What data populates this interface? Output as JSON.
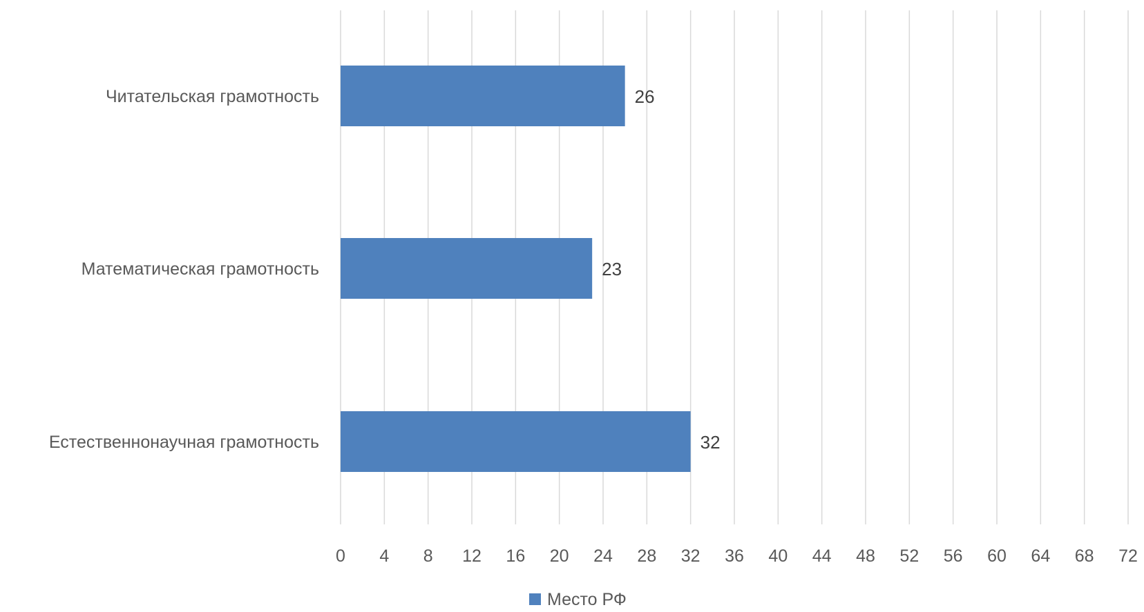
{
  "chart_data": {
    "type": "bar",
    "orientation": "horizontal",
    "categories": [
      "Читательская грамотность",
      "Математическая грамотность",
      "Естественнонаучная грамотность"
    ],
    "series": [
      {
        "name": "Место РФ",
        "values": [
          26,
          23,
          32
        ],
        "color": "#4F81BD"
      }
    ],
    "xlim": [
      0,
      72
    ],
    "xticks": [
      0,
      4,
      8,
      12,
      16,
      20,
      24,
      28,
      32,
      36,
      40,
      44,
      48,
      52,
      56,
      60,
      64,
      68,
      72
    ],
    "grid": true,
    "grid_color": "#D9D9D9",
    "legend": "bottom-center",
    "data_labels": true
  }
}
